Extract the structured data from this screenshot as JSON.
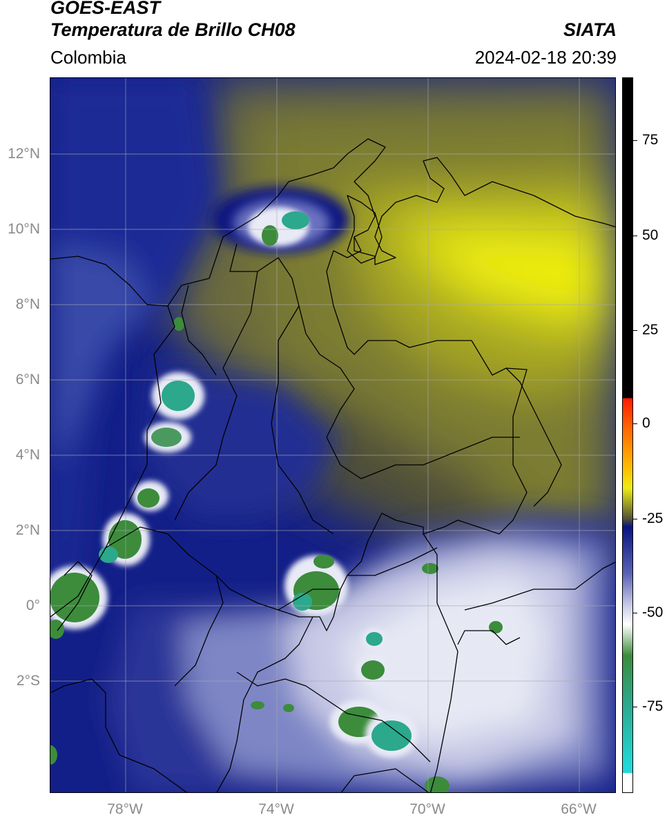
{
  "header": {
    "title_line1": "GOES-EAST",
    "title_line2": "Temperatura de Brillo CH08",
    "agency": "SIATA",
    "region": "Colombia",
    "timestamp": "2024-02-18 20:39"
  },
  "map": {
    "lat_ticks": [
      "12°N",
      "10°N",
      "8°N",
      "6°N",
      "4°N",
      "2°N",
      "0°",
      "2°S"
    ],
    "lon_ticks": [
      "78°W",
      "74°W",
      "70°W",
      "66°W"
    ],
    "colors": {
      "deep_blue": "#0a1480",
      "navy": "#1c2a8c",
      "periwinkle": "#8a90c8",
      "white": "#f4f4f8",
      "green": "#3c8c3c",
      "teal": "#2ca88c",
      "olive_dark": "#505038",
      "olive": "#8c8c2a",
      "yellow": "#ecec14",
      "border_line": "#000000",
      "grid_line": "#aaaaaa"
    }
  },
  "colorbar": {
    "tick_labels": [
      "75",
      "50",
      "25",
      "0",
      "-25",
      "-50",
      "-75"
    ],
    "stops": [
      {
        "value": 90,
        "color": "#000000"
      },
      {
        "value": 8,
        "color": "#000000"
      },
      {
        "value": 8,
        "color": "#ff1a00"
      },
      {
        "value": 0,
        "color": "#ff6a00"
      },
      {
        "value": -10,
        "color": "#ffbf00"
      },
      {
        "value": -15,
        "color": "#ecec14"
      },
      {
        "value": -20,
        "color": "#8c8c2a"
      },
      {
        "value": -23,
        "color": "#505038"
      },
      {
        "value": -25,
        "color": "#0a1480"
      },
      {
        "value": -37,
        "color": "#5a62b4"
      },
      {
        "value": -45,
        "color": "#c8cae6"
      },
      {
        "value": -50,
        "color": "#ffffff"
      },
      {
        "value": -58,
        "color": "#3c8c3c"
      },
      {
        "value": -70,
        "color": "#2ca88c"
      },
      {
        "value": -86,
        "color": "#20d8d8"
      },
      {
        "value": -88,
        "color": "#20d8d8"
      },
      {
        "value": -88,
        "color": "#ffffff"
      },
      {
        "value": -93,
        "color": "#ffffff"
      }
    ]
  }
}
